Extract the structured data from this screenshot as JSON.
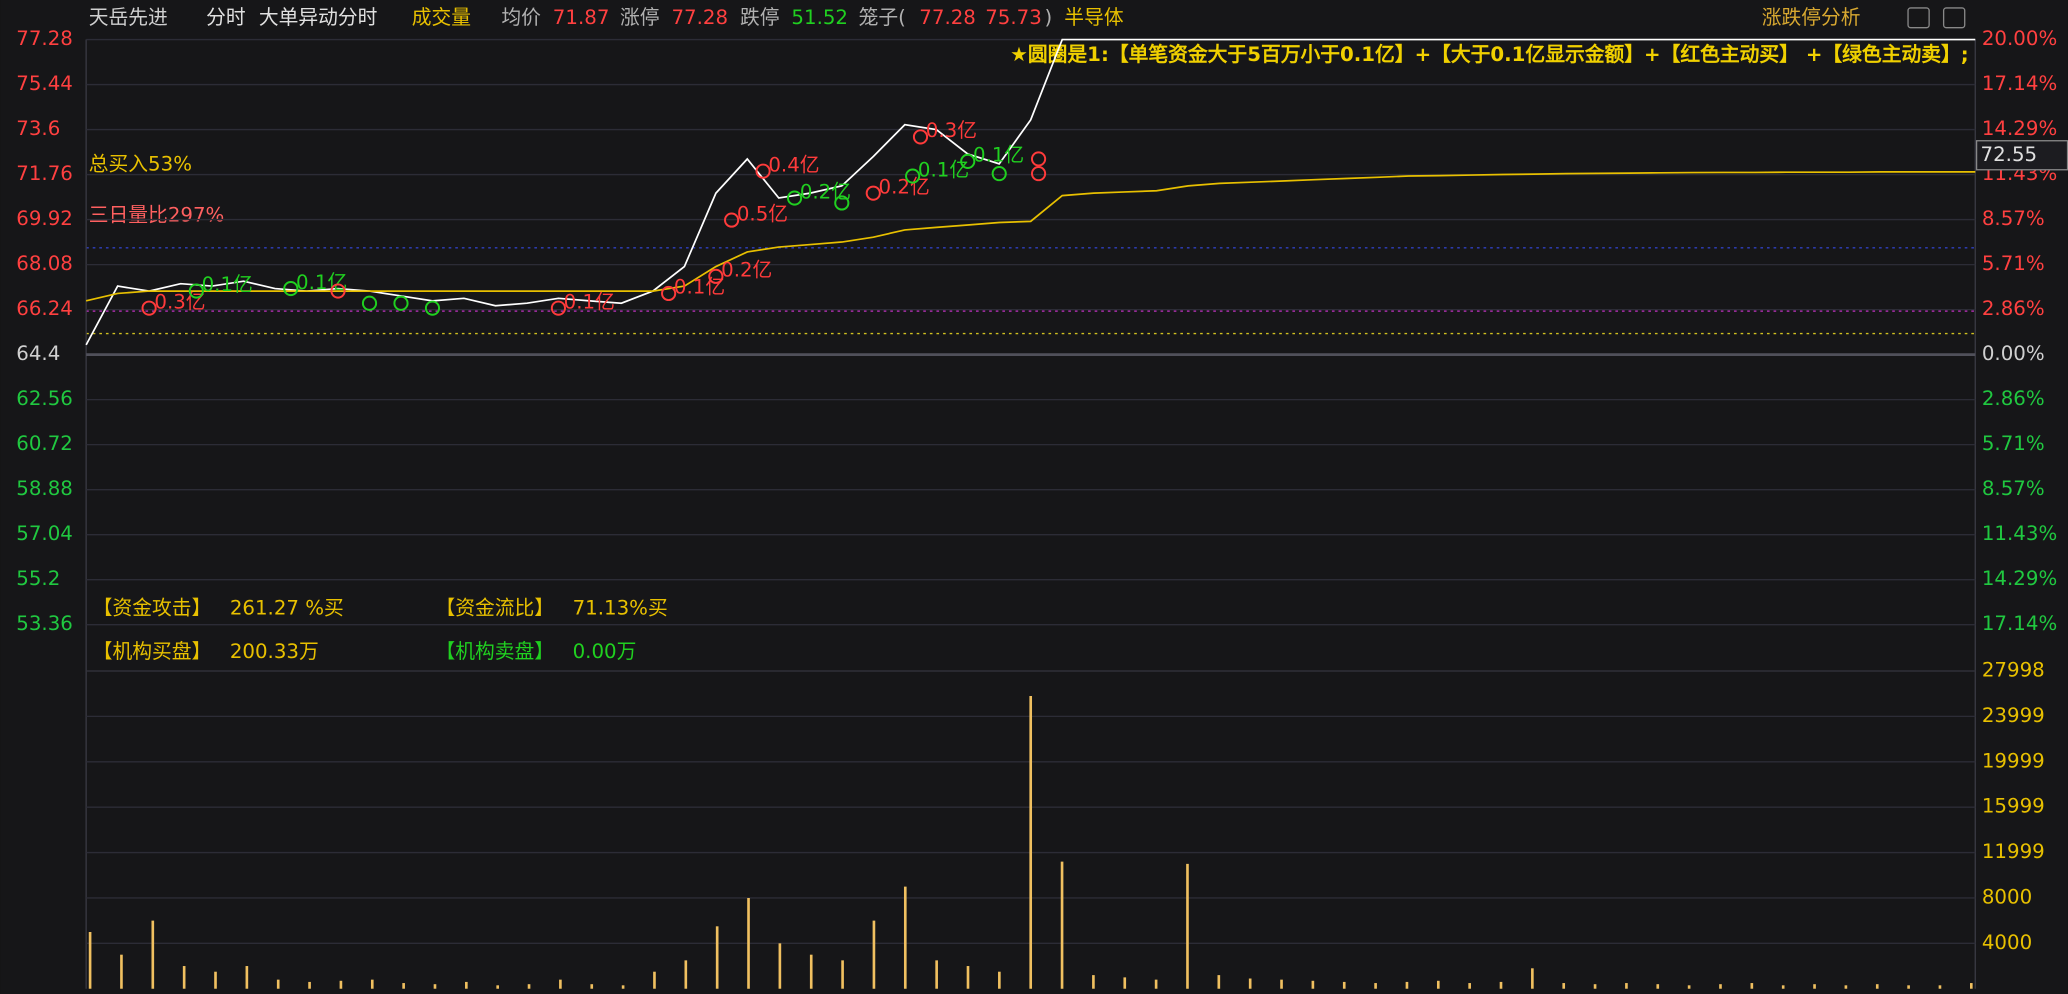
{
  "chart_data": {
    "type": "line",
    "header": {
      "stock": "天岳先进",
      "mode": "分时",
      "indicator": "大单异动分时",
      "sub_indicator": "成交量",
      "avg_label": "均价",
      "avg_value": 71.87,
      "limit_up_label": "涨停",
      "limit_up": 77.28,
      "limit_down_label": "跌停",
      "limit_down": 51.52,
      "cage_label": "笼子(",
      "cage_high": 77.28,
      "cage_low": 75.73,
      "cage_close": ")",
      "sector": "半导体",
      "tool": "涨跌停分析"
    },
    "legend_note": "★圆圈是1:【单笔资金大于5百万小于0.1亿】+【大于0.1亿显示金额】+【红色主动买】 +【绿色主动卖】;",
    "total_buy": "总买入53%",
    "volume_ratio": "三日量比297%",
    "stats": [
      {
        "label": "【资金攻击】",
        "value": "261.27 %买",
        "color": "#e8c000"
      },
      {
        "label": "【资金流比】",
        "value": "71.13%买",
        "color": "#e8c000"
      },
      {
        "label": "【机构买盘】",
        "value": "200.33万",
        "color": "#e8c000"
      },
      {
        "label": "【机构卖盘】",
        "value": "0.00万",
        "color": "#20d020"
      }
    ],
    "current_price": 72.55,
    "ylim": [
      51.52,
      77.28
    ],
    "yticks": [
      77.28,
      75.44,
      73.6,
      71.76,
      69.92,
      68.08,
      66.24,
      64.4,
      62.56,
      60.72,
      58.88,
      57.04,
      55.2,
      53.36
    ],
    "y2lim": [
      -20,
      20
    ],
    "y2ticks": [
      {
        "value": 20,
        "label": "20.00%"
      },
      {
        "value": 17.14,
        "label": "17.14%"
      },
      {
        "value": 14.29,
        "label": "14.29%"
      },
      {
        "value": 11.43,
        "label": "11.43%"
      },
      {
        "value": 8.57,
        "label": "8.57%"
      },
      {
        "value": 5.71,
        "label": "5.71%"
      },
      {
        "value": 2.86,
        "label": "2.86%"
      },
      {
        "value": 0,
        "label": "0.00%"
      },
      {
        "value": -2.86,
        "label": "2.86%"
      },
      {
        "value": -5.71,
        "label": "5.71%"
      },
      {
        "value": -8.57,
        "label": "8.57%"
      },
      {
        "value": -11.43,
        "label": "11.43%"
      },
      {
        "value": -14.29,
        "label": "14.29%"
      },
      {
        "value": -17.14,
        "label": "17.14%"
      }
    ],
    "series": [
      {
        "color": "#ffffff",
        "values": [
          64.8,
          67.2,
          67.0,
          67.3,
          67.2,
          67.4,
          67.1,
          67.0,
          67.1,
          67.0,
          66.8,
          66.6,
          66.7,
          66.4,
          66.5,
          66.7,
          66.6,
          66.5,
          67.0,
          68.0,
          71.0,
          72.4,
          70.8,
          71.0,
          71.3,
          72.5,
          73.8,
          73.6,
          72.6,
          72.2,
          74.0,
          77.28,
          77.28,
          77.28,
          77.28,
          77.28,
          77.28,
          77.28,
          77.28,
          77.28,
          77.28,
          77.28,
          77.28,
          77.28,
          77.28,
          77.28,
          77.28,
          77.28,
          77.28,
          77.28,
          77.28,
          77.28,
          77.28,
          77.28,
          77.28,
          77.28,
          77.28,
          77.28,
          77.28,
          77.28,
          77.28
        ]
      },
      {
        "color": "#e8c000",
        "values": [
          66.6,
          66.9,
          67.0,
          67.0,
          67.0,
          67.0,
          67.0,
          67.0,
          67.0,
          67.0,
          67.0,
          67.0,
          67.0,
          67.0,
          67.0,
          67.0,
          67.0,
          67.0,
          67.0,
          67.2,
          68.0,
          68.6,
          68.8,
          68.9,
          69.0,
          69.2,
          69.5,
          69.6,
          69.7,
          69.8,
          69.85,
          70.9,
          71.0,
          71.05,
          71.1,
          71.3,
          71.4,
          71.45,
          71.5,
          71.55,
          71.6,
          71.65,
          71.7,
          71.72,
          71.74,
          71.76,
          71.78,
          71.8,
          71.81,
          71.82,
          71.83,
          71.84,
          71.85,
          71.85,
          71.86,
          71.86,
          71.86,
          71.87,
          71.87,
          71.87,
          71.87
        ]
      }
    ],
    "markers": [
      {
        "minute": 8,
        "price": 66.3,
        "label": "0.3亿",
        "color": "#ff3b3b"
      },
      {
        "minute": 14,
        "price": 67.0,
        "label": "0.1亿",
        "color": "#20d020"
      },
      {
        "minute": 26,
        "price": 67.1,
        "label": "0.1亿",
        "color": "#20d020"
      },
      {
        "minute": 32,
        "price": 67.0,
        "color": "#ff3b3b"
      },
      {
        "minute": 36,
        "price": 66.5,
        "color": "#20d020"
      },
      {
        "minute": 40,
        "price": 66.5,
        "color": "#20d020"
      },
      {
        "minute": 44,
        "price": 66.3,
        "color": "#20d020"
      },
      {
        "minute": 60,
        "price": 66.3,
        "label": "0.1亿",
        "color": "#ff3b3b"
      },
      {
        "minute": 74,
        "price": 66.9,
        "label": "0.1亿",
        "color": "#ff3b3b"
      },
      {
        "minute": 80,
        "price": 67.6,
        "label": "0.2亿",
        "color": "#ff3b3b"
      },
      {
        "minute": 82,
        "price": 69.9,
        "label": "0.5亿",
        "color": "#ff3b3b"
      },
      {
        "minute": 86,
        "price": 71.9,
        "label": "0.4亿",
        "color": "#ff3b3b"
      },
      {
        "minute": 90,
        "price": 70.8,
        "label": "0.2亿",
        "color": "#20d020"
      },
      {
        "minute": 96,
        "price": 70.6,
        "color": "#20d020"
      },
      {
        "minute": 100,
        "price": 71.0,
        "label": "0.2亿",
        "color": "#ff3b3b"
      },
      {
        "minute": 105,
        "price": 71.7,
        "label": "0.1亿",
        "color": "#20d020"
      },
      {
        "minute": 106,
        "price": 73.3,
        "label": "0.3亿",
        "color": "#ff3b3b"
      },
      {
        "minute": 112,
        "price": 72.3,
        "label": "0.1亿",
        "color": "#20d020"
      },
      {
        "minute": 116,
        "price": 71.8,
        "color": "#20d020"
      },
      {
        "minute": 121,
        "price": 72.4,
        "color": "#ff3b3b"
      },
      {
        "minute": 121,
        "price": 71.8,
        "color": "#ff3b3b"
      }
    ],
    "volume": {
      "ylim": [
        0,
        27998
      ],
      "yticks": [
        4000,
        8000,
        11999,
        15999,
        19999,
        23999,
        27998
      ],
      "color": "#f0c060",
      "values": [
        5000,
        3000,
        6000,
        2000,
        1500,
        2000,
        800,
        600,
        700,
        800,
        500,
        400,
        600,
        300,
        400,
        800,
        400,
        300,
        1500,
        2500,
        5500,
        8000,
        4000,
        3000,
        2500,
        6000,
        9000,
        2500,
        2000,
        1500,
        25800,
        11200,
        1200,
        1000,
        800,
        11000,
        1200,
        900,
        800,
        700,
        600,
        500,
        600,
        700,
        500,
        600,
        1800,
        500,
        400,
        500,
        400,
        300,
        400,
        500,
        300,
        400,
        300,
        400,
        300,
        300,
        500
      ]
    }
  }
}
